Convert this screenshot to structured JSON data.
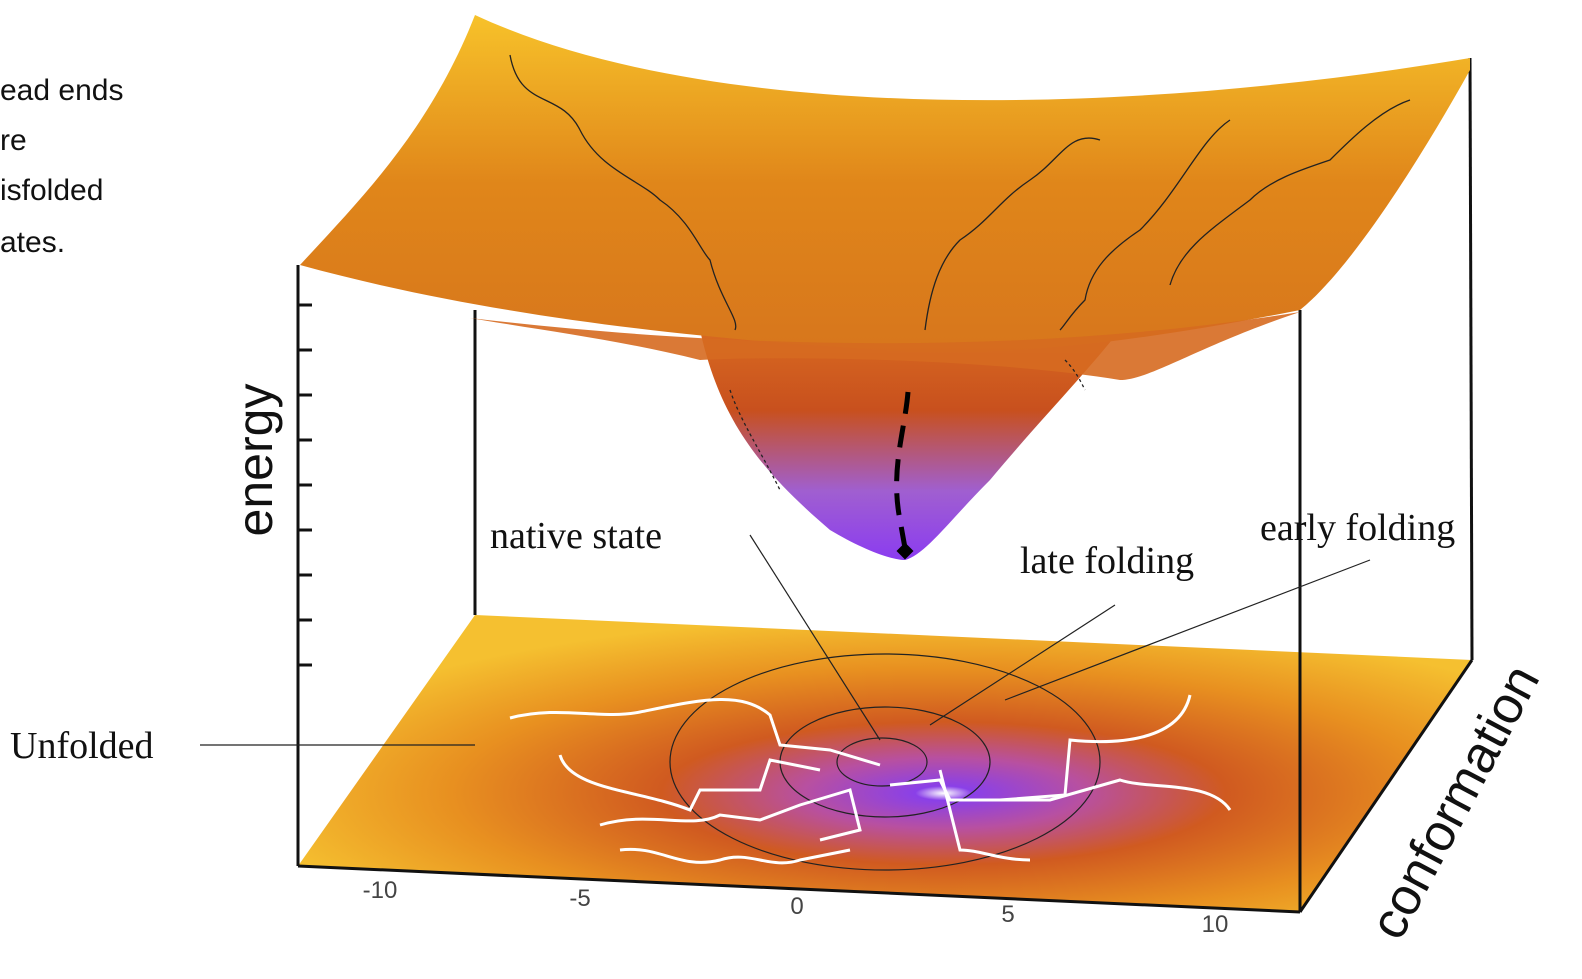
{
  "note_lines": [
    "ead ends",
    "re",
    "isfolded",
    "ates."
  ],
  "axes": {
    "z_label": "energy",
    "y_label": "conformation",
    "x_ticks": [
      "-10",
      "-5",
      "0",
      "5",
      "10"
    ]
  },
  "labels": {
    "native": "native state",
    "late": "late folding",
    "early": "early folding",
    "unfolded": "Unfolded"
  }
}
